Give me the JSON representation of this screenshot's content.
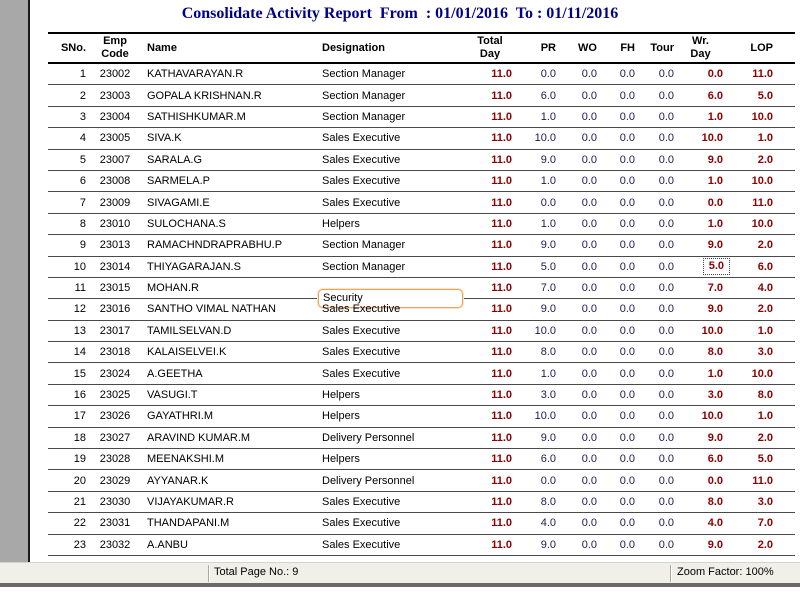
{
  "title": "Consolidate Activity Report  From  : 01/01/2016  To : 01/11/2016",
  "columns": {
    "sno": "SNo.",
    "emp_code": "Emp\nCode",
    "name": "Name",
    "designation": "Designation",
    "total_day": "Total\nDay",
    "pr": "PR",
    "wo": "WO",
    "fh": "FH",
    "tour": "Tour",
    "wr_day": "Wr.\nDay",
    "lop": "LOP"
  },
  "column_order": [
    "sno",
    "emp_code",
    "name",
    "designation",
    "total_day",
    "pr",
    "wo",
    "fh",
    "tour",
    "wr_day",
    "lop"
  ],
  "rows": [
    [
      "1",
      "23002",
      "KATHAVARAYAN.R",
      "Section Manager",
      "11.0",
      "0.0",
      "0.0",
      "0.0",
      "0.0",
      "0.0",
      "11.0"
    ],
    [
      "2",
      "23003",
      "GOPALA KRISHNAN.R",
      "Section Manager",
      "11.0",
      "6.0",
      "0.0",
      "0.0",
      "0.0",
      "6.0",
      "5.0"
    ],
    [
      "3",
      "23004",
      "SATHISHKUMAR.M",
      "Section Manager",
      "11.0",
      "1.0",
      "0.0",
      "0.0",
      "0.0",
      "1.0",
      "10.0"
    ],
    [
      "4",
      "23005",
      "SIVA.K",
      "Sales Executive",
      "11.0",
      "10.0",
      "0.0",
      "0.0",
      "0.0",
      "10.0",
      "1.0"
    ],
    [
      "5",
      "23007",
      "SARALA.G",
      "Sales Executive",
      "11.0",
      "9.0",
      "0.0",
      "0.0",
      "0.0",
      "9.0",
      "2.0"
    ],
    [
      "6",
      "23008",
      "SARMELA.P",
      "Sales Executive",
      "11.0",
      "1.0",
      "0.0",
      "0.0",
      "0.0",
      "1.0",
      "10.0"
    ],
    [
      "7",
      "23009",
      "SIVAGAMI.E",
      "Sales Executive",
      "11.0",
      "0.0",
      "0.0",
      "0.0",
      "0.0",
      "0.0",
      "11.0"
    ],
    [
      "8",
      "23010",
      "SULOCHANA.S",
      "Helpers",
      "11.0",
      "1.0",
      "0.0",
      "0.0",
      "0.0",
      "1.0",
      "10.0"
    ],
    [
      "9",
      "23013",
      "RAMACHNDRAPRABHU.P",
      "Section Manager",
      "11.0",
      "9.0",
      "0.0",
      "0.0",
      "0.0",
      "9.0",
      "2.0"
    ],
    [
      "10",
      "23014",
      "THIYAGARAJAN.S",
      "Section Manager",
      "11.0",
      "5.0",
      "0.0",
      "0.0",
      "0.0",
      "5.0",
      "6.0"
    ],
    [
      "11",
      "23015",
      "MOHAN.R",
      "Security",
      "11.0",
      "7.0",
      "0.0",
      "0.0",
      "0.0",
      "7.0",
      "4.0"
    ],
    [
      "12",
      "23016",
      "SANTHO VIMAL NATHAN",
      "Sales Executive",
      "11.0",
      "9.0",
      "0.0",
      "0.0",
      "0.0",
      "9.0",
      "2.0"
    ],
    [
      "13",
      "23017",
      "TAMILSELVAN.D",
      "Sales Executive",
      "11.0",
      "10.0",
      "0.0",
      "0.0",
      "0.0",
      "10.0",
      "1.0"
    ],
    [
      "14",
      "23018",
      "KALAISELVEI.K",
      "Sales Executive",
      "11.0",
      "8.0",
      "0.0",
      "0.0",
      "0.0",
      "8.0",
      "3.0"
    ],
    [
      "15",
      "23024",
      "A.GEETHA",
      "Sales Executive",
      "11.0",
      "1.0",
      "0.0",
      "0.0",
      "0.0",
      "1.0",
      "10.0"
    ],
    [
      "16",
      "23025",
      "VASUGI.T",
      "Helpers",
      "11.0",
      "3.0",
      "0.0",
      "0.0",
      "0.0",
      "3.0",
      "8.0"
    ],
    [
      "17",
      "23026",
      "GAYATHRI.M",
      "Helpers",
      "11.0",
      "10.0",
      "0.0",
      "0.0",
      "0.0",
      "10.0",
      "1.0"
    ],
    [
      "18",
      "23027",
      "ARAVIND KUMAR.M",
      "Delivery Personnel",
      "11.0",
      "9.0",
      "0.0",
      "0.0",
      "0.0",
      "9.0",
      "2.0"
    ],
    [
      "19",
      "23028",
      "MEENAKSHI.M",
      "Helpers",
      "11.0",
      "6.0",
      "0.0",
      "0.0",
      "0.0",
      "6.0",
      "5.0"
    ],
    [
      "20",
      "23029",
      "AYYANAR.K",
      "Delivery Personnel",
      "11.0",
      "0.0",
      "0.0",
      "0.0",
      "0.0",
      "0.0",
      "11.0"
    ],
    [
      "21",
      "23030",
      "VIJAYAKUMAR.R",
      "Sales Executive",
      "11.0",
      "8.0",
      "0.0",
      "0.0",
      "0.0",
      "8.0",
      "3.0"
    ],
    [
      "22",
      "23031",
      "THANDAPANI.M",
      "Sales Executive",
      "11.0",
      "4.0",
      "0.0",
      "0.0",
      "0.0",
      "4.0",
      "7.0"
    ],
    [
      "23",
      "23032",
      "A.ANBU",
      "Sales Executive",
      "11.0",
      "9.0",
      "0.0",
      "0.0",
      "0.0",
      "9.0",
      "2.0"
    ]
  ],
  "editing": {
    "row_index": 10,
    "field": "designation",
    "value": "Security"
  },
  "focused": {
    "row_index": 9,
    "field": "wr_day"
  },
  "status_bar": {
    "total_page_label": "Total Page No.: 9",
    "zoom_factor_label": "Zoom Factor: 100%"
  },
  "colors": {
    "title": "#00008B",
    "summary_value": "#8B0000",
    "metric_value": "#1a1a52",
    "edit_box_border": "#f0a05a",
    "gutter": "#a8a8a8"
  }
}
